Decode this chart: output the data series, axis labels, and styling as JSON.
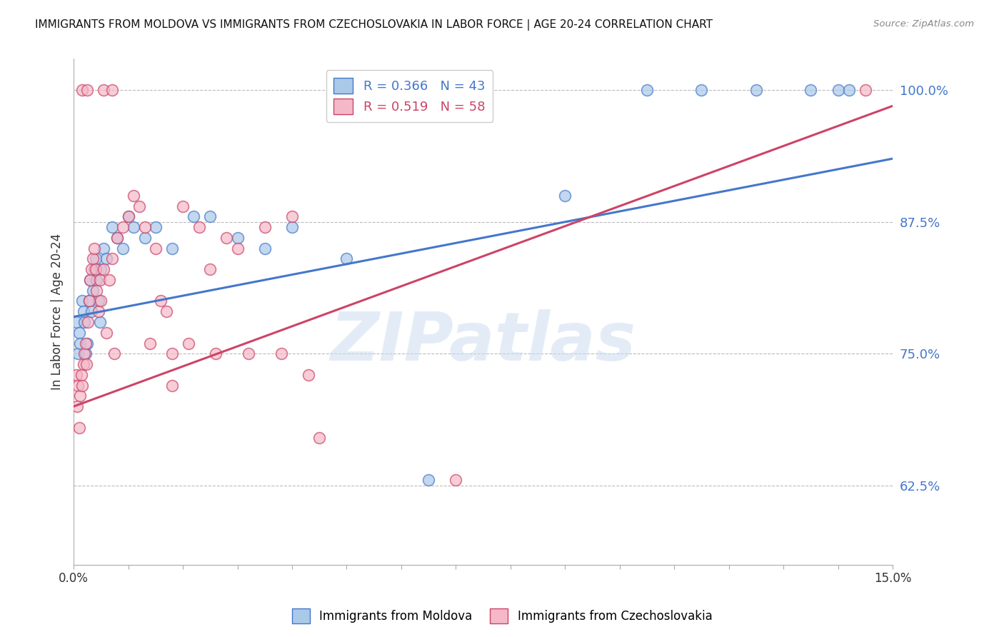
{
  "title": "IMMIGRANTS FROM MOLDOVA VS IMMIGRANTS FROM CZECHOSLOVAKIA IN LABOR FORCE | AGE 20-24 CORRELATION CHART",
  "source": "Source: ZipAtlas.com",
  "ylabel": "In Labor Force | Age 20-24",
  "legend_label1": "Immigrants from Moldova",
  "legend_label2": "Immigrants from Czechoslovakia",
  "r1": 0.366,
  "n1": 43,
  "r2": 0.519,
  "n2": 58,
  "color1": "#aac8e8",
  "color2": "#f5b8c8",
  "line_color1": "#4477cc",
  "line_color2": "#cc4466",
  "xlim": [
    0.0,
    15.0
  ],
  "ylim": [
    55.0,
    103.0
  ],
  "ytick_values": [
    62.5,
    75.0,
    87.5,
    100.0
  ],
  "xtick_values": [
    0.0,
    1.0,
    2.0,
    3.0,
    4.0,
    5.0,
    6.0,
    7.0,
    8.0,
    9.0,
    10.0,
    11.0,
    12.0,
    13.0,
    14.0,
    15.0
  ],
  "watermark": "ZIPatlas",
  "background_color": "#ffffff",
  "moldova_x": [
    0.05,
    0.08,
    0.1,
    0.12,
    0.15,
    0.18,
    0.2,
    0.22,
    0.25,
    0.28,
    0.3,
    0.32,
    0.35,
    0.38,
    0.4,
    0.42,
    0.45,
    0.48,
    0.5,
    0.55,
    0.6,
    0.7,
    0.8,
    0.9,
    1.0,
    1.1,
    1.3,
    1.5,
    1.8,
    2.2,
    2.5,
    3.0,
    3.5,
    4.0,
    5.0,
    6.5,
    9.0,
    10.5,
    11.5,
    12.5,
    13.5,
    14.0,
    14.2
  ],
  "moldova_y": [
    78.0,
    75.0,
    77.0,
    76.0,
    80.0,
    79.0,
    78.0,
    75.0,
    76.0,
    80.0,
    82.0,
    79.0,
    81.0,
    83.0,
    84.0,
    82.0,
    80.0,
    78.0,
    83.0,
    85.0,
    84.0,
    87.0,
    86.0,
    85.0,
    88.0,
    87.0,
    86.0,
    87.0,
    85.0,
    88.0,
    88.0,
    86.0,
    85.0,
    87.0,
    84.0,
    63.0,
    90.0,
    100.0,
    100.0,
    100.0,
    100.0,
    100.0,
    100.0
  ],
  "czech_x": [
    0.05,
    0.07,
    0.08,
    0.1,
    0.12,
    0.14,
    0.16,
    0.18,
    0.2,
    0.22,
    0.24,
    0.26,
    0.28,
    0.3,
    0.32,
    0.35,
    0.38,
    0.4,
    0.42,
    0.45,
    0.48,
    0.5,
    0.55,
    0.6,
    0.65,
    0.7,
    0.75,
    0.8,
    0.9,
    1.0,
    1.1,
    1.2,
    1.3,
    1.4,
    1.5,
    1.6,
    1.7,
    1.8,
    2.0,
    2.3,
    2.5,
    2.8,
    3.0,
    3.5,
    4.0,
    4.5,
    1.8,
    2.1,
    2.6,
    3.2,
    3.8,
    4.3,
    0.15,
    0.25,
    0.55,
    0.7,
    7.0,
    14.5
  ],
  "czech_y": [
    73.0,
    70.0,
    72.0,
    68.0,
    71.0,
    73.0,
    72.0,
    74.0,
    75.0,
    76.0,
    74.0,
    78.0,
    80.0,
    82.0,
    83.0,
    84.0,
    85.0,
    83.0,
    81.0,
    79.0,
    82.0,
    80.0,
    83.0,
    77.0,
    82.0,
    84.0,
    75.0,
    86.0,
    87.0,
    88.0,
    90.0,
    89.0,
    87.0,
    76.0,
    85.0,
    80.0,
    79.0,
    72.0,
    89.0,
    87.0,
    83.0,
    86.0,
    85.0,
    87.0,
    88.0,
    67.0,
    75.0,
    76.0,
    75.0,
    75.0,
    75.0,
    73.0,
    100.0,
    100.0,
    100.0,
    100.0,
    63.0,
    100.0
  ],
  "blue_line_x0": 0.0,
  "blue_line_y0": 78.5,
  "blue_line_x1": 15.0,
  "blue_line_y1": 93.5,
  "pink_line_x0": 0.0,
  "pink_line_y0": 70.0,
  "pink_line_x1": 15.0,
  "pink_line_y1": 98.5
}
